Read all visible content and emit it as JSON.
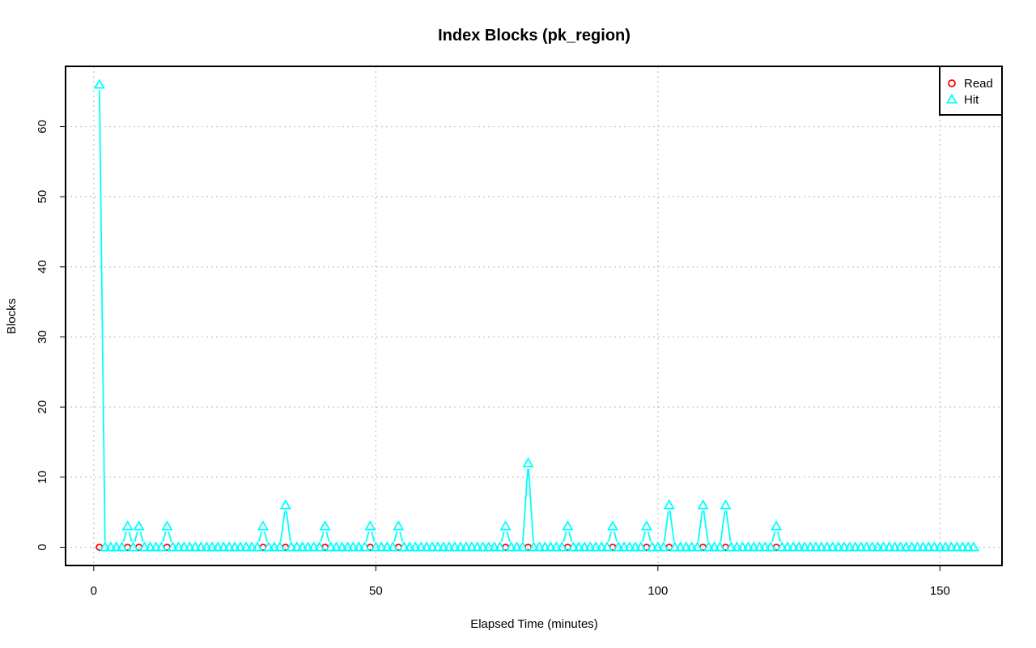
{
  "chart_data": {
    "type": "line",
    "title": "Index Blocks (pk_region)",
    "xlabel": "Elapsed Time (minutes)",
    "ylabel": "Blocks",
    "xlim": [
      -5,
      161
    ],
    "ylim": [
      -2.6,
      68.6
    ],
    "x_ticks": [
      0,
      50,
      100,
      150
    ],
    "y_ticks": [
      0,
      10,
      20,
      30,
      40,
      50,
      60
    ],
    "grid": true,
    "legend_position": "top-right",
    "x_start": 1,
    "x_end": 156,
    "series": [
      {
        "name": "Read",
        "color": "#ff0000",
        "marker": "circle",
        "line": false,
        "default_value": 0,
        "visible_point_x": [
          1,
          6,
          8,
          13,
          30,
          34,
          41,
          49,
          54,
          73,
          77,
          84,
          92,
          98,
          102,
          108,
          112,
          121
        ]
      },
      {
        "name": "Hit",
        "color": "#00ffff",
        "marker": "triangle",
        "line": true,
        "default_value": 0,
        "nonzero": [
          {
            "x": 1,
            "y": 66
          },
          {
            "x": 6,
            "y": 3
          },
          {
            "x": 8,
            "y": 3
          },
          {
            "x": 13,
            "y": 3
          },
          {
            "x": 30,
            "y": 3
          },
          {
            "x": 34,
            "y": 6
          },
          {
            "x": 41,
            "y": 3
          },
          {
            "x": 49,
            "y": 3
          },
          {
            "x": 54,
            "y": 3
          },
          {
            "x": 73,
            "y": 3
          },
          {
            "x": 77,
            "y": 12
          },
          {
            "x": 84,
            "y": 3
          },
          {
            "x": 92,
            "y": 3
          },
          {
            "x": 98,
            "y": 3
          },
          {
            "x": 102,
            "y": 6
          },
          {
            "x": 108,
            "y": 6
          },
          {
            "x": 112,
            "y": 6
          },
          {
            "x": 121,
            "y": 3
          }
        ]
      }
    ]
  }
}
